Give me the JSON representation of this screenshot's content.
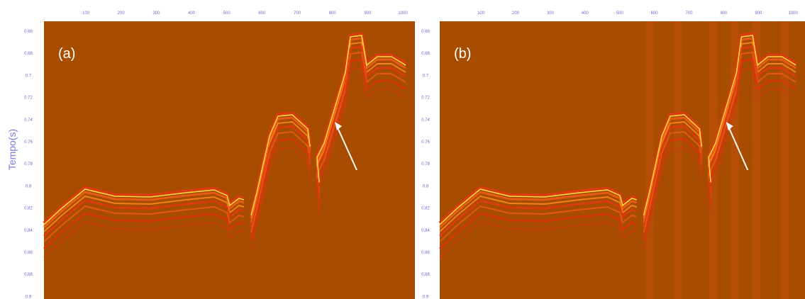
{
  "y_axis_title": "Tempo(s)",
  "panels": [
    {
      "label": "(a)",
      "top_ticks": [
        "100",
        "200",
        "300",
        "400",
        "500",
        "600",
        "700",
        "800",
        "900",
        "1000"
      ],
      "left_ticks": [
        "0.66",
        "0.68",
        "0.7",
        "0.72",
        "0.74",
        "0.76",
        "0.78",
        "0.8",
        "0.82",
        "0.84",
        "0.86",
        "0.88",
        "0.9"
      ]
    },
    {
      "label": "(b)",
      "top_ticks": [
        "100",
        "200",
        "300",
        "400",
        "500",
        "600",
        "700",
        "800",
        "900",
        "1000"
      ],
      "left_ticks": [
        "0.66",
        "0.68",
        "0.7",
        "0.72",
        "0.74",
        "0.76",
        "0.78",
        "0.8",
        "0.82",
        "0.84",
        "0.86",
        "0.88",
        "0.9"
      ]
    }
  ]
}
